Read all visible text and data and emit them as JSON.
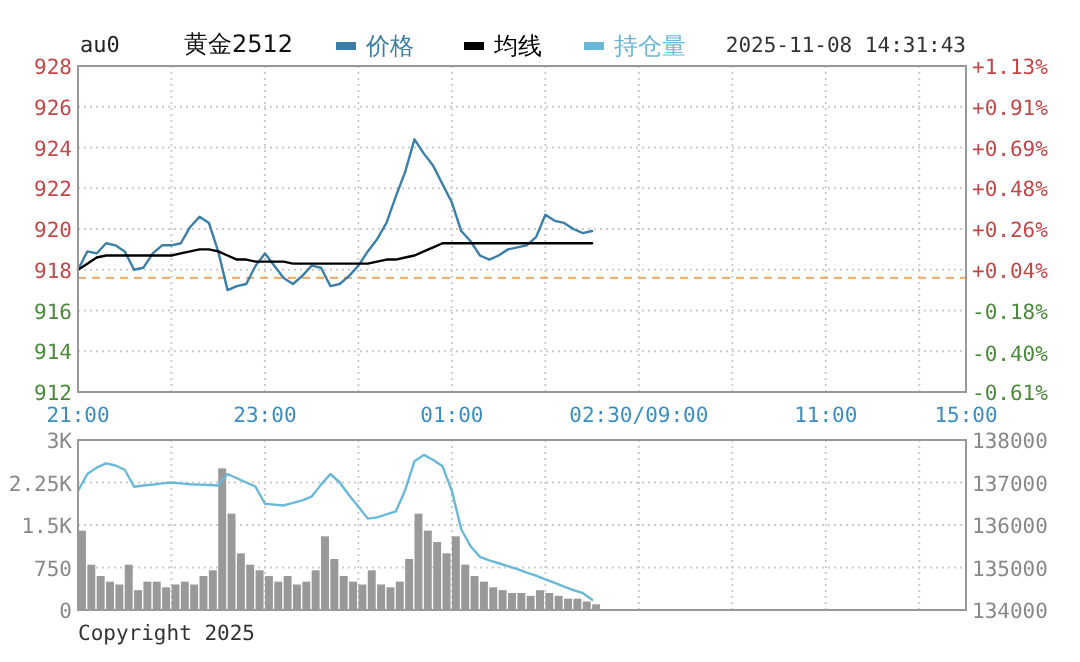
{
  "chart_data": [
    {
      "type": "line",
      "title": "黄金2512",
      "subtitle": "au0",
      "annotations": [
        "2025-11-08 14:31:43"
      ],
      "legend": "top",
      "grid": true,
      "categories": [
        "21:00",
        null,
        null,
        null,
        null,
        null,
        null,
        null,
        null,
        null,
        null,
        null,
        null,
        null,
        null,
        null,
        null,
        null,
        null,
        null,
        "23:00",
        null,
        null,
        null,
        null,
        null,
        null,
        null,
        null,
        null,
        null,
        null,
        null,
        null,
        null,
        null,
        null,
        null,
        null,
        null,
        "01:00",
        null,
        null,
        null,
        null,
        null,
        null,
        null,
        null,
        null,
        null,
        null,
        null,
        null,
        null,
        null,
        null,
        null,
        null,
        null,
        "02:30/09:00",
        null,
        null,
        null,
        null,
        null,
        null,
        null,
        null,
        null,
        null,
        null,
        null,
        null,
        null,
        null,
        null,
        null,
        null,
        null,
        "11:00",
        null,
        null,
        null,
        null,
        null,
        null,
        null,
        null,
        null,
        null,
        null,
        null,
        null,
        null,
        "15:00"
      ],
      "ylim": [
        912,
        928
      ],
      "yticks": [
        912,
        914,
        916,
        918,
        920,
        922,
        924,
        926,
        928
      ],
      "y2lim": [
        -0.61,
        1.13
      ],
      "y2ticks": [
        {
          "value": -0.61,
          "label": "-0.61%"
        },
        {
          "value": -0.4,
          "label": "-0.40%"
        },
        {
          "value": -0.18,
          "label": "-0.18%"
        },
        {
          "value": 0.04,
          "label": "+0.04%"
        },
        {
          "value": 0.26,
          "label": "+0.26%"
        },
        {
          "value": 0.48,
          "label": "+0.48%"
        },
        {
          "value": 0.69,
          "label": "+0.69%"
        },
        {
          "value": 0.91,
          "label": "+0.91%"
        },
        {
          "value": 1.13,
          "label": "+1.13%"
        }
      ],
      "ref_lines": [
        {
          "axis": "y",
          "value": 917.6,
          "color": "#f0b070",
          "line_style": "dashed"
        }
      ],
      "series": [
        {
          "name": "价格",
          "color": "#3b7fa8",
          "values": [
            918.0,
            918.9,
            918.8,
            919.3,
            919.2,
            918.9,
            918.0,
            918.1,
            918.8,
            919.2,
            919.2,
            919.3,
            920.1,
            920.6,
            920.3,
            918.9,
            917.0,
            917.2,
            917.3,
            918.2,
            918.8,
            918.2,
            917.6,
            917.3,
            917.7,
            918.2,
            918.1,
            917.2,
            917.3,
            917.7,
            918.2,
            918.9,
            919.5,
            920.3,
            921.6,
            922.8,
            924.4,
            923.7,
            923.1,
            922.2,
            921.3,
            919.9,
            919.4,
            918.7,
            918.5,
            918.7,
            919.0,
            919.1,
            919.2,
            919.6,
            920.7,
            920.4,
            920.3,
            920.0,
            919.8,
            919.9,
            null,
            null,
            null,
            null,
            null,
            null,
            null,
            null,
            null,
            null,
            null,
            null,
            null,
            null,
            null,
            null,
            null,
            null,
            null,
            null,
            null,
            null,
            null,
            null,
            null,
            null,
            null,
            null,
            null,
            null,
            null,
            null,
            null,
            null,
            null,
            null,
            null,
            null,
            null,
            null
          ]
        },
        {
          "name": "均线",
          "color": "#000000",
          "values": [
            918.0,
            918.3,
            918.6,
            918.7,
            918.7,
            918.7,
            918.7,
            918.7,
            918.7,
            918.7,
            918.7,
            918.8,
            918.9,
            919.0,
            919.0,
            918.9,
            918.7,
            918.5,
            918.5,
            918.4,
            918.4,
            918.4,
            918.4,
            918.3,
            918.3,
            918.3,
            918.3,
            918.3,
            918.3,
            918.3,
            918.3,
            918.3,
            918.4,
            918.5,
            918.5,
            918.6,
            918.7,
            918.9,
            919.1,
            919.3,
            919.3,
            919.3,
            919.3,
            919.3,
            919.3,
            919.3,
            919.3,
            919.3,
            919.3,
            919.3,
            919.3,
            919.3,
            919.3,
            919.3,
            919.3,
            919.3,
            null,
            null,
            null,
            null,
            null,
            null,
            null,
            null,
            null,
            null,
            null,
            null,
            null,
            null,
            null,
            null,
            null,
            null,
            null,
            null,
            null,
            null,
            null,
            null,
            null,
            null,
            null,
            null,
            null,
            null,
            null,
            null,
            null,
            null,
            null,
            null,
            null,
            null,
            null,
            null
          ]
        }
      ]
    },
    {
      "type": "bar",
      "annotations": [
        "Copyright 2025"
      ],
      "legend": "top",
      "grid": true,
      "tick_labels": "y",
      "categories": [
        null,
        null,
        null,
        null,
        null,
        null,
        null,
        null,
        null,
        null,
        null,
        null,
        null,
        null,
        null,
        null,
        null,
        null,
        null,
        null,
        null,
        null,
        null,
        null,
        null,
        null,
        null,
        null,
        null,
        null,
        null,
        null,
        null,
        null,
        null,
        null,
        null,
        null,
        null,
        null,
        null,
        null,
        null,
        null,
        null,
        null,
        null,
        null,
        null,
        null,
        null,
        null,
        null,
        null,
        null,
        null,
        null,
        null,
        null,
        null,
        null,
        null,
        null,
        null,
        null,
        null,
        null,
        null,
        null,
        null,
        null,
        null,
        null,
        null,
        null,
        null,
        null,
        null,
        null,
        null,
        null,
        null,
        null,
        null,
        null,
        null,
        null,
        null,
        null,
        null,
        null,
        null,
        null,
        null,
        null,
        null
      ],
      "ylim": [
        0,
        3000
      ],
      "yticks": [
        0,
        750,
        {
          "value": 1500,
          "label": "1.5K"
        },
        {
          "value": 2250,
          "label": "2.25K"
        },
        {
          "value": 3000,
          "label": "3K"
        }
      ],
      "y2lim": [
        134000,
        138000
      ],
      "y2ticks": [
        134000,
        135000,
        136000,
        137000,
        138000
      ],
      "series": [
        {
          "color": "#999999",
          "values": [
            1400,
            800,
            600,
            500,
            450,
            800,
            350,
            500,
            500,
            400,
            450,
            500,
            450,
            600,
            700,
            2500,
            1700,
            1000,
            800,
            700,
            600,
            500,
            600,
            450,
            500,
            700,
            1300,
            900,
            600,
            500,
            450,
            700,
            450,
            400,
            500,
            900,
            1700,
            1400,
            1200,
            1000,
            1300,
            800,
            600,
            500,
            400,
            350,
            300,
            300,
            250,
            350,
            300,
            250,
            200,
            200,
            150,
            100,
            null,
            null,
            null,
            null,
            null,
            null,
            null,
            null,
            null,
            null,
            null,
            null,
            null,
            null,
            null,
            null,
            null,
            null,
            null,
            null,
            null,
            null,
            null,
            null,
            null,
            null,
            null,
            null,
            null,
            null,
            null,
            null,
            null,
            null,
            null,
            null,
            null,
            null,
            null,
            null
          ]
        },
        {
          "name": "持仓量",
          "type": "line",
          "axis": "y2",
          "color": "#6ab8d8",
          "values": [
            136800,
            137200,
            137350,
            137450,
            137400,
            137300,
            136900,
            136930,
            136950,
            136980,
            137000,
            136980,
            136960,
            136950,
            136940,
            136930,
            137200,
            137100,
            137000,
            136900,
            136500,
            136480,
            136460,
            136520,
            136580,
            136670,
            136950,
            137200,
            137000,
            136700,
            136430,
            136150,
            136180,
            136250,
            136320,
            136820,
            137500,
            137650,
            137530,
            137380,
            136800,
            135900,
            135500,
            135250,
            135170,
            135100,
            135030,
            134960,
            134880,
            134810,
            134720,
            134640,
            134550,
            134470,
            134400,
            134240,
            null,
            null,
            null,
            null,
            null,
            null,
            null,
            null,
            null,
            null,
            null,
            null,
            null,
            null,
            null,
            null,
            null,
            null,
            null,
            null,
            null,
            null,
            null,
            null,
            null,
            null,
            null,
            null,
            null,
            null,
            null,
            null,
            null,
            null,
            null,
            null,
            null,
            null,
            null,
            null
          ]
        }
      ]
    }
  ]
}
